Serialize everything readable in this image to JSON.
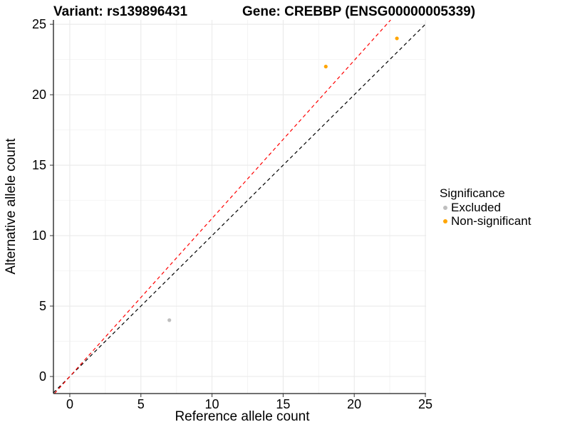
{
  "chart_data": {
    "type": "scatter",
    "title_left": "Variant: rs139896431",
    "title_right": "Gene: CREBBP (ENSG00000005339)",
    "xlabel": "Reference allele count",
    "ylabel": "Alternative allele count",
    "xlim": [
      -1.15,
      25.05
    ],
    "ylim": [
      -1.21,
      25.31
    ],
    "x_ticks": [
      0,
      5,
      10,
      15,
      20,
      25
    ],
    "y_ticks": [
      0,
      5,
      10,
      15,
      20,
      25
    ],
    "x_minor_ticks": [
      2.5,
      7.5,
      12.5,
      17.5,
      22.5
    ],
    "y_minor_ticks": [
      2.5,
      7.5,
      12.5,
      17.5,
      22.5
    ],
    "grid": true,
    "series": [
      {
        "name": "Excluded",
        "color": "#BEBEBE",
        "points": [
          {
            "x": 7,
            "y": 4
          }
        ]
      },
      {
        "name": "Non-significant",
        "color": "#FFA500",
        "points": [
          {
            "x": 18,
            "y": 22
          },
          {
            "x": 23,
            "y": 24
          }
        ]
      }
    ],
    "lines": [
      {
        "id": "identity-line",
        "color": "#000000",
        "slope": 1.0,
        "intercept": 0,
        "style": "dashed"
      },
      {
        "id": "ratio-line",
        "color": "#FF0000",
        "slope": 1.122,
        "intercept": 0,
        "style": "dashed"
      }
    ],
    "legend": {
      "title": "Significance",
      "position": "right",
      "items": [
        {
          "label": "Excluded",
          "color": "#BEBEBE"
        },
        {
          "label": "Non-significant",
          "color": "#FFA500"
        }
      ]
    },
    "colors": {
      "major_grid": "#e8e8e8",
      "minor_grid": "#f4f4f4",
      "axis_line": "#1a1a1a",
      "tick_mark": "#333333",
      "text": "#000000"
    }
  }
}
